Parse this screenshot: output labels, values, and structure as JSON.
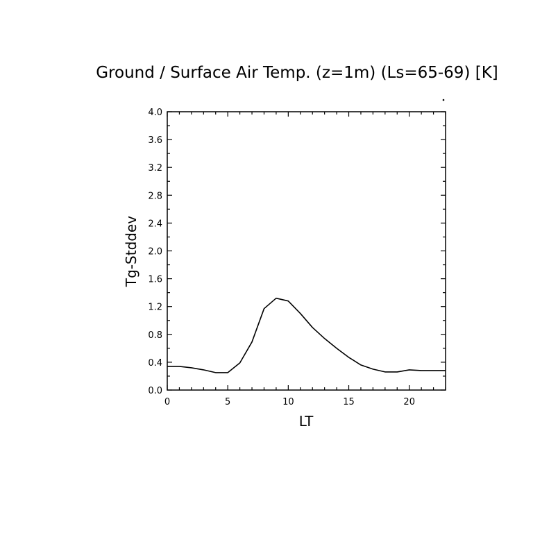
{
  "chart_data": {
    "type": "line",
    "title": "Ground / Surface Air Temp. (z=1m) (Ls=65-69) [K]",
    "xlabel": "LT",
    "ylabel": "Tg-Stddev",
    "xlim": [
      0,
      23
    ],
    "ylim": [
      0.0,
      4.0
    ],
    "x_ticks": [
      0,
      5,
      10,
      15,
      20
    ],
    "x_tick_labels": [
      "0",
      "5",
      "10",
      "15",
      "20"
    ],
    "x_minor_step": 1,
    "y_ticks": [
      0.0,
      0.4,
      0.8,
      1.2,
      1.6,
      2.0,
      2.4,
      2.8,
      3.2,
      3.6,
      4.0
    ],
    "y_tick_labels": [
      "0.0",
      "0.4",
      "0.8",
      "1.2",
      "1.6",
      "2.0",
      "2.4",
      "2.8",
      "3.2",
      "3.6",
      "4.0"
    ],
    "y_minor_step": 0.2,
    "grid": false,
    "series": [
      {
        "x": [
          0,
          1,
          2,
          3,
          4,
          5,
          6,
          7,
          8,
          9,
          10,
          11,
          12,
          13,
          14,
          15,
          16,
          17,
          18,
          19,
          20,
          21,
          22,
          23
        ],
        "values": [
          0.34,
          0.34,
          0.32,
          0.29,
          0.25,
          0.25,
          0.39,
          0.69,
          1.17,
          1.32,
          1.28,
          1.1,
          0.9,
          0.74,
          0.6,
          0.47,
          0.36,
          0.3,
          0.26,
          0.26,
          0.29,
          0.28,
          0.28,
          0.28
        ]
      }
    ]
  }
}
